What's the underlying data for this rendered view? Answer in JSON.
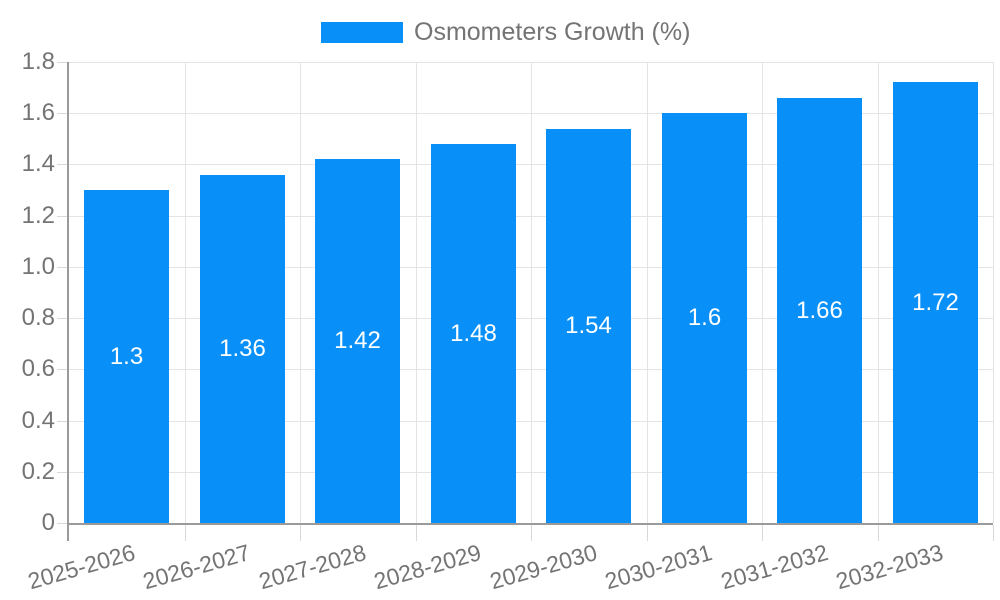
{
  "legend": {
    "label": "Osmometers Growth (%)"
  },
  "chart_data": {
    "type": "bar",
    "series_name": "Osmometers Growth (%)",
    "categories": [
      "2025-2026",
      "2026-2027",
      "2027-2028",
      "2028-2029",
      "2029-2030",
      "2030-2031",
      "2031-2032",
      "2032-2033"
    ],
    "values": [
      1.3,
      1.36,
      1.42,
      1.48,
      1.54,
      1.6,
      1.66,
      1.72
    ],
    "value_labels": [
      "1.3",
      "1.36",
      "1.42",
      "1.48",
      "1.54",
      "1.6",
      "1.66",
      "1.72"
    ],
    "ylim": [
      0,
      1.8
    ],
    "ytick_labels": [
      "0",
      "0.2",
      "0.4",
      "0.6",
      "0.8",
      "1.0",
      "1.2",
      "1.4",
      "1.6",
      "1.8"
    ],
    "xlabel": "",
    "ylabel": "",
    "grid": true,
    "legend_position": "top-center",
    "x_label_rotation_deg": -16
  },
  "colors": {
    "bar": "#0990F8",
    "axis_label": "#747474",
    "axis_line": "#9A9A9A",
    "gridline": "#E4E4E4",
    "tick": "#D8D8D8",
    "value_label": "#FFFFFF",
    "background": "#FFFFFF"
  }
}
